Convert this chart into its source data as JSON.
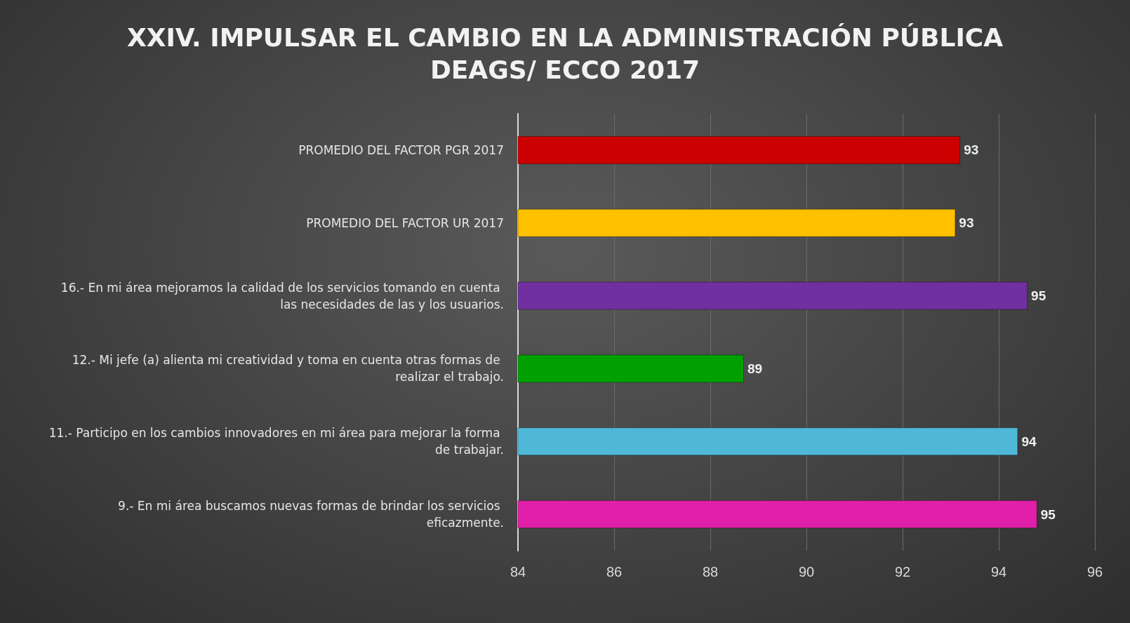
{
  "chart_data": {
    "type": "bar",
    "orientation": "horizontal",
    "title": "XXIV. IMPULSAR EL CAMBIO EN LA ADMINISTRACIÓN PÚBLICA",
    "subtitle": "DEAGS/ ECCO 2017",
    "categories": [
      "PROMEDIO DEL FACTOR PGR 2017",
      "PROMEDIO DEL FACTOR UR 2017",
      "16.- En mi área mejoramos la calidad de los servicios tomando en cuenta las necesidades de las y los usuarios.",
      "12.- Mi jefe (a) alienta mi creatividad y toma en cuenta otras formas de realizar el trabajo.",
      "11.- Participo en los cambios innovadores en mi área para mejorar la forma de trabajar.",
      "9.- En mi área buscamos nuevas formas de brindar los servicios eficazmente."
    ],
    "values": [
      93.2,
      93.1,
      94.6,
      88.7,
      94.4,
      94.8
    ],
    "value_labels": [
      "93",
      "93",
      "95",
      "89",
      "94",
      "95"
    ],
    "colors": [
      "#cc0000",
      "#ffc000",
      "#7030a0",
      "#00a000",
      "#4fb8d8",
      "#e020a8"
    ],
    "xlim": [
      84,
      96
    ],
    "xticks": [
      84,
      86,
      88,
      90,
      92,
      94,
      96
    ],
    "grid": "x"
  }
}
